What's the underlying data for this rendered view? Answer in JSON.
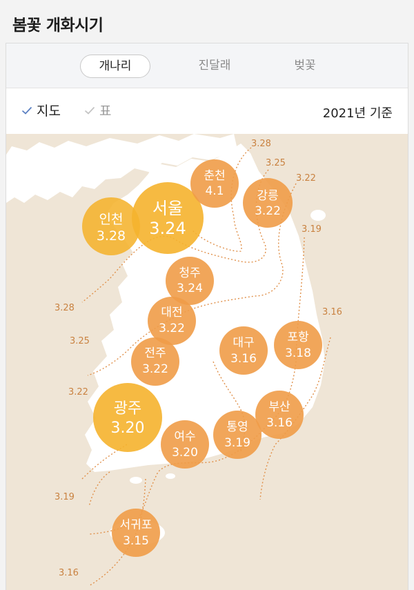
{
  "title": "봄꽃 개화시기",
  "tabs": [
    {
      "label": "개나리",
      "active": true
    },
    {
      "label": "진달래",
      "active": false
    },
    {
      "label": "벚꽃",
      "active": false
    }
  ],
  "view_options": [
    {
      "label": "지도",
      "selected": true
    },
    {
      "label": "표",
      "selected": false
    }
  ],
  "basis": "2021년 기준",
  "colors": {
    "accent_check": "#5b80c2",
    "bubble_large": "#f5b32e",
    "bubble": "#ef9c48",
    "isoline": "#e0904a",
    "land": "#ffffff",
    "sea": "#efe5d6"
  },
  "map": {
    "cities": [
      {
        "name": "인천",
        "date": "3.28"
      },
      {
        "name": "서울",
        "date": "3.24"
      },
      {
        "name": "춘천",
        "date": "4.1"
      },
      {
        "name": "강릉",
        "date": "3.22"
      },
      {
        "name": "청주",
        "date": "3.24"
      },
      {
        "name": "대전",
        "date": "3.22"
      },
      {
        "name": "전주",
        "date": "3.22"
      },
      {
        "name": "대구",
        "date": "3.16"
      },
      {
        "name": "포항",
        "date": "3.18"
      },
      {
        "name": "광주",
        "date": "3.20"
      },
      {
        "name": "부산",
        "date": "3.16"
      },
      {
        "name": "통영",
        "date": "3.19"
      },
      {
        "name": "여수",
        "date": "3.20"
      },
      {
        "name": "서귀포",
        "date": "3.15"
      }
    ],
    "isoline_labels": [
      "3.28",
      "3.25",
      "3.22",
      "3.19",
      "3.16",
      "3.28",
      "3.25",
      "3.22",
      "3.19",
      "3.16"
    ]
  }
}
